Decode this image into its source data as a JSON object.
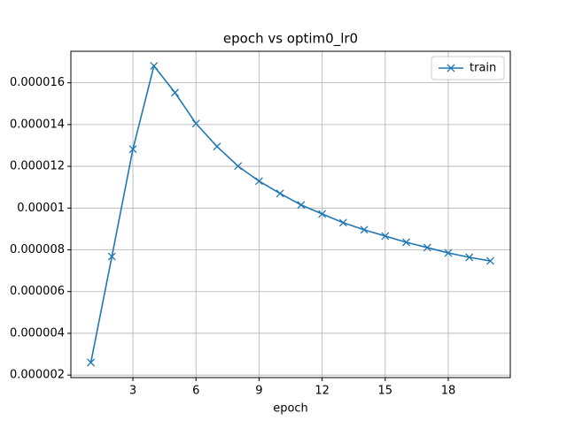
{
  "chart_data": {
    "type": "line",
    "title": "epoch vs optim0_lr0",
    "xlabel": "epoch",
    "x": [
      1,
      2,
      3,
      4,
      5,
      6,
      7,
      8,
      9,
      10,
      11,
      12,
      13,
      14,
      15,
      16,
      17,
      18,
      19,
      20
    ],
    "series": [
      {
        "name": "train",
        "color": "#1f77b4",
        "marker": "x",
        "values": [
          2.6e-06,
          7.68e-06,
          1.282e-05,
          1.681e-05,
          1.553e-05,
          1.405e-05,
          1.295e-05,
          1.201e-05,
          1.129e-05,
          1.07e-05,
          1.015e-05,
          9.72e-06,
          9.3e-06,
          8.96e-06,
          8.66e-06,
          8.36e-06,
          8.11e-06,
          7.85e-06,
          7.64e-06,
          7.47e-06
        ]
      }
    ],
    "xlim": [
      0.05,
      20.95
    ],
    "xticks": [
      3,
      6,
      9,
      12,
      15,
      18
    ],
    "ylim": [
      1.88e-06,
      1.751e-05
    ],
    "yticks": [
      2e-06,
      4e-06,
      6e-06,
      8e-06,
      1e-05,
      1.2e-05,
      1.4e-05,
      1.6e-05
    ],
    "grid": true,
    "legend": "upper right"
  }
}
